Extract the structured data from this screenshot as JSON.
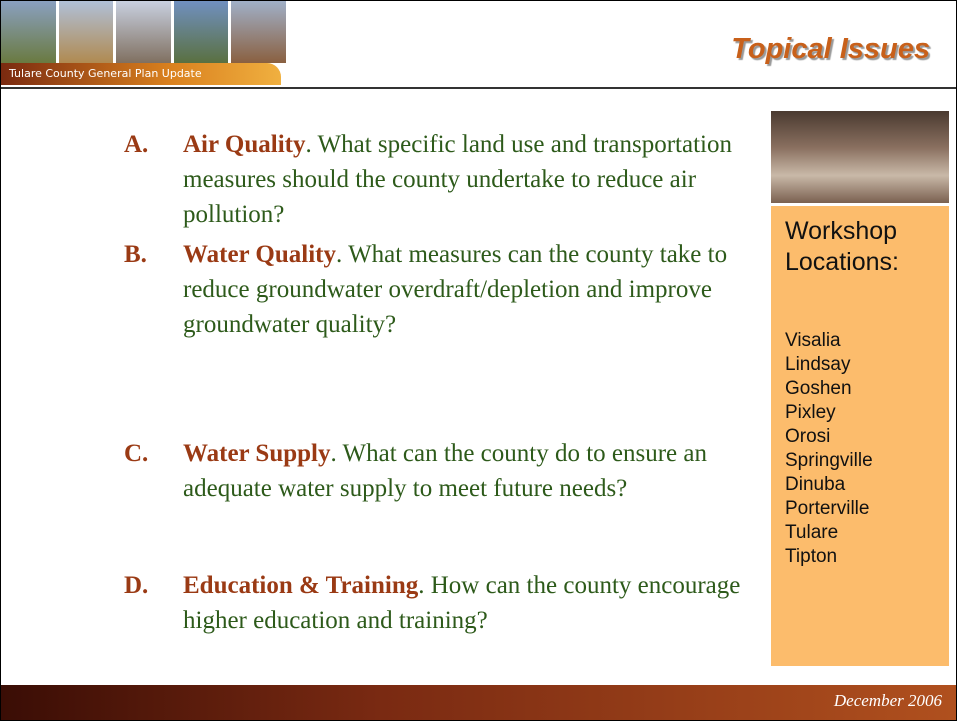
{
  "header": {
    "banner_label": "Tulare County General Plan Update",
    "title": "Topical Issues"
  },
  "items": [
    {
      "marker": "A.",
      "heading": "Air Quality",
      "text": ". What specific land use and transportation measures should the county undertake to reduce air pollution?"
    },
    {
      "marker": "B.",
      "heading": "Water Quality",
      "text": ". What measures can the county take to reduce groundwater overdraft/depletion and improve groundwater quality?"
    },
    {
      "marker": "C.",
      "heading": "Water Supply",
      "text": ". What can the county do to ensure an adequate water supply to meet future needs?"
    },
    {
      "marker": "D.",
      "heading": "Education & Training",
      "text": ". How can the county encourage higher education and training?"
    }
  ],
  "sidebar": {
    "heading": "Workshop Locations:",
    "locations": [
      "Visalia",
      "Lindsay",
      "Goshen",
      "Pixley",
      "Orosi",
      "Springville",
      "Dinuba",
      "Porterville",
      "Tulare",
      "Tipton"
    ]
  },
  "footer": {
    "date": "December 2006"
  }
}
